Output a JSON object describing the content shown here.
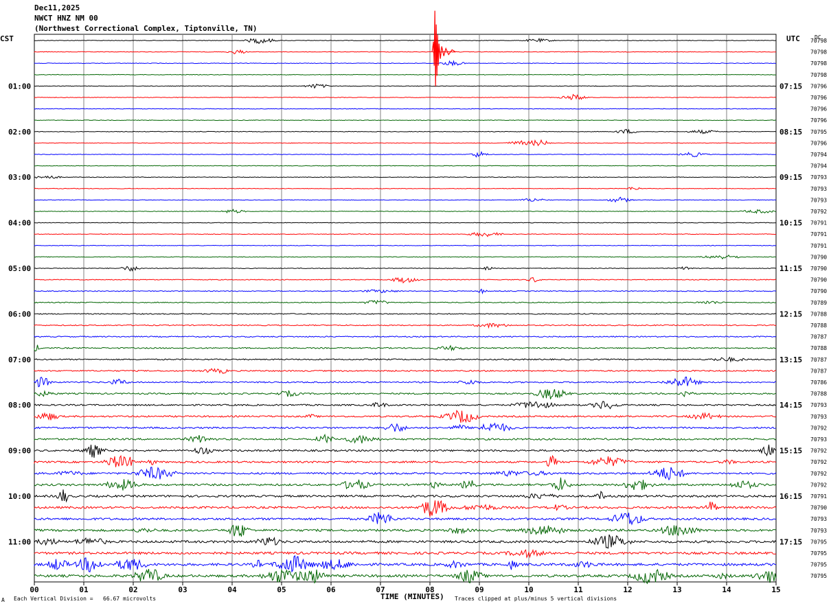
{
  "header": {
    "date": "Dec11,2025",
    "station": "NWCT HNZ NM 00",
    "location": "(Northwest Correctional Complex, Tiptonville, TN)"
  },
  "left_zone": "CST",
  "right_zone": "UTC",
  "dc_label": "DC",
  "footer": {
    "scale_note": "Each Vertical Division =   66.67 microvolts",
    "xlabel": "TIME (MINUTES)",
    "clip_note": "Traces clipped at plus/minus 5 vertical divisions",
    "corner_mark": "A"
  },
  "colors": {
    "trace_cycle": [
      "#000000",
      "#ff0000",
      "#0000ff",
      "#006400"
    ],
    "grid": "#808080"
  },
  "chart_data": {
    "type": "line",
    "title": "NWCT HNZ NM 00",
    "xlabel": "TIME (MINUTES)",
    "xlim": [
      0,
      15
    ],
    "x_ticks": [
      "00",
      "01",
      "02",
      "03",
      "04",
      "05",
      "06",
      "07",
      "08",
      "09",
      "10",
      "11",
      "12",
      "13",
      "14",
      "15"
    ],
    "left_hour_labels": [
      "01:00",
      "02:00",
      "03:00",
      "04:00",
      "05:00",
      "06:00",
      "07:00",
      "08:00",
      "09:00",
      "10:00",
      "11:00"
    ],
    "right_hour_labels": [
      "07:15",
      "08:15",
      "09:15",
      "10:15",
      "11:15",
      "12:15",
      "13:15",
      "14:15",
      "15:15",
      "16:15",
      "17:15"
    ],
    "dc_offsets": [
      "70798",
      "70798",
      "70798",
      "70798",
      "70796",
      "70796",
      "70796",
      "70796",
      "70795",
      "70796",
      "70794",
      "70794",
      "70793",
      "70793",
      "70793",
      "70792",
      "70791",
      "70791",
      "70791",
      "70790",
      "70790",
      "70790",
      "70790",
      "70789",
      "70788",
      "70788",
      "70787",
      "70788",
      "70787",
      "70787",
      "70786",
      "70788",
      "70793",
      "70793",
      "70792",
      "70793",
      "70792",
      "70792",
      "70792",
      "70792",
      "70791",
      "70790",
      "70793",
      "70793",
      "70795",
      "70795",
      "70795",
      "70795"
    ],
    "trace_count": 48,
    "grid": true
  }
}
